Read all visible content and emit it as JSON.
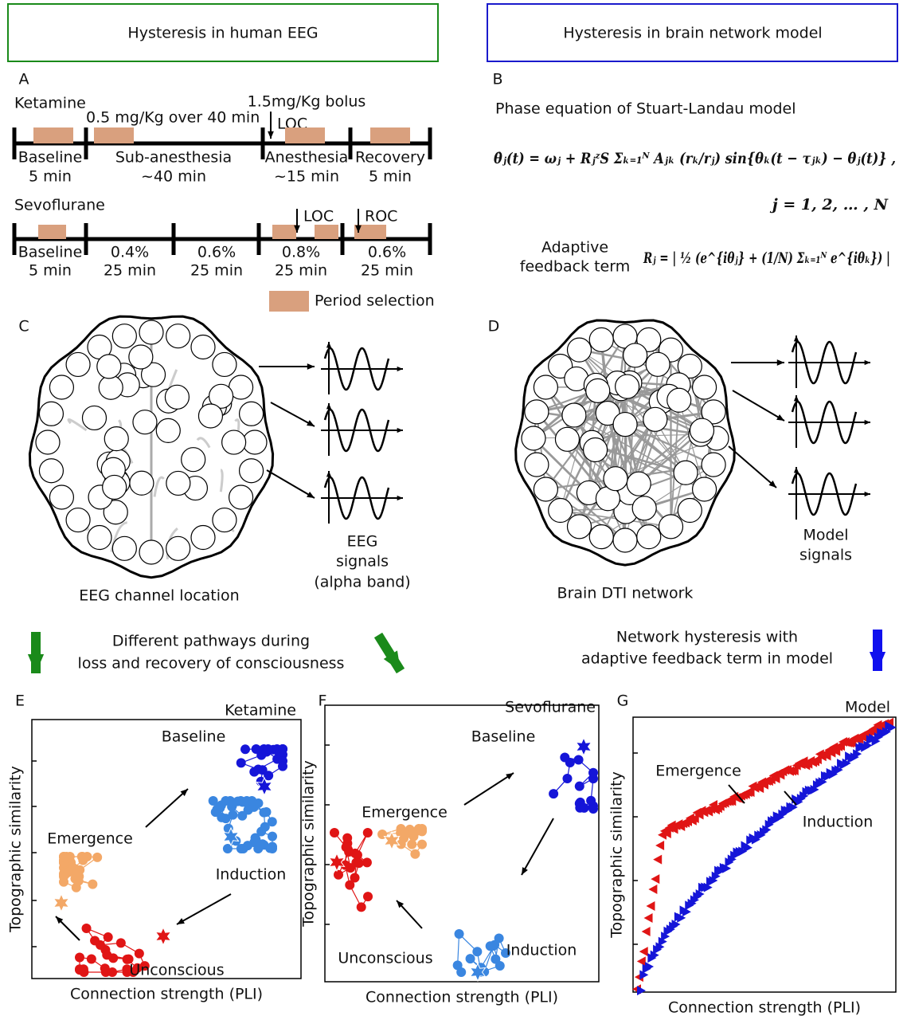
{
  "headers": {
    "left": "Hysteresis in human EEG",
    "right": "Hysteresis in brain network model"
  },
  "panel_a": {
    "letter": "A",
    "ketamine": {
      "drug": "Ketamine",
      "dose_slow": "0.5 mg/Kg over 40 min",
      "dose_bolus": "1.5mg/Kg bolus",
      "loc": "LOC",
      "segments": [
        {
          "name": "Baseline",
          "time": "5 min"
        },
        {
          "name": "Sub-anesthesia",
          "time": "~40 min"
        },
        {
          "name": "Anesthesia",
          "time": "~15 min"
        },
        {
          "name": "Recovery",
          "time": "5 min"
        }
      ]
    },
    "sevoflurane": {
      "drug": "Sevoflurane",
      "loc": "LOC",
      "roc": "ROC",
      "segments": [
        {
          "name": "Baseline",
          "time": "5 min"
        },
        {
          "name": "0.4%",
          "time": "25 min"
        },
        {
          "name": "0.6%",
          "time": "25 min"
        },
        {
          "name": "0.8%",
          "time": "25 min"
        },
        {
          "name": "0.6%",
          "time": "25 min"
        }
      ]
    },
    "legend": "Period selection"
  },
  "panel_b": {
    "letter": "B",
    "title": "Phase equation of Stuart-Landau model",
    "equation": "θ̇ⱼ(t) = ωⱼ + RⱼᶻS Σₖ₌₁ᴺ Aⱼₖ (rₖ/rⱼ) sin{θₖ(t − τⱼₖ) − θⱼ(t)} ,",
    "index": "j = 1, 2, … , N",
    "feedback_label": [
      "Adaptive",
      "feedback term"
    ],
    "feedback_equation": "Rⱼ = | ½ (e^{iθⱼ} + (1/N) Σₖ₌₁ᴺ e^{iθₖ}) |"
  },
  "panel_c": {
    "letter": "C",
    "caption": "EEG channel location",
    "signals": [
      "EEG",
      "signals",
      "(alpha band)"
    ]
  },
  "panel_d": {
    "letter": "D",
    "caption": "Brain DTI network",
    "signals": [
      "Model",
      "signals"
    ]
  },
  "transition": {
    "left": [
      "Different pathways during",
      "loss and recovery of consciousness"
    ],
    "right": [
      "Network hysteresis with",
      "adaptive feedback term in model"
    ]
  },
  "panel_e": {
    "letter": "E",
    "condition": "Ketamine",
    "labels": [
      "Baseline",
      "Emergence",
      "Induction",
      "Unconscious"
    ],
    "xlabel": "Connection strength (PLI)",
    "ylabel": "Topographic similarity"
  },
  "panel_f": {
    "letter": "F",
    "condition": "Sevoflurane",
    "labels": [
      "Baseline",
      "Emergence",
      "Unconscious",
      "Induction"
    ],
    "xlabel": "Connection strength (PLI)",
    "ylabel": "Topographic similarity"
  },
  "panel_g": {
    "letter": "G",
    "condition": "Model",
    "labels": [
      "Emergence",
      "Induction"
    ],
    "xlabel": "Connection strength (PLI)",
    "ylabel": "Topographic similarity"
  }
}
